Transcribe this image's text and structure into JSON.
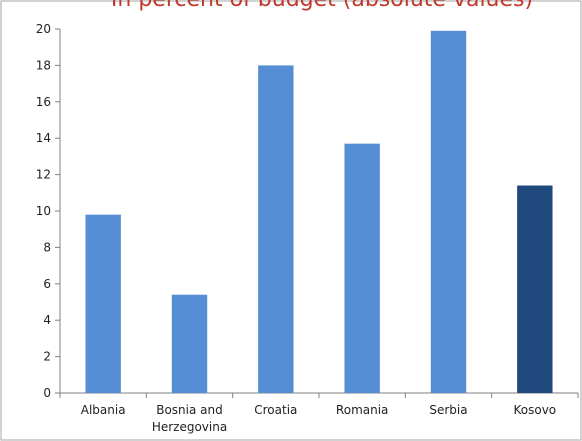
{
  "chart_data": {
    "type": "bar",
    "title": "In percent of budget (absolute values)",
    "categories": [
      "Albania",
      "Bosnia and Herzegovina",
      "Croatia",
      "Romania",
      "Serbia",
      "Kosovo"
    ],
    "category_lines": [
      [
        "Albania"
      ],
      [
        "Bosnia and",
        "Herzegovina"
      ],
      [
        "Croatia"
      ],
      [
        "Romania"
      ],
      [
        "Serbia"
      ],
      [
        "Kosovo"
      ]
    ],
    "values": [
      9.8,
      5.4,
      18.0,
      13.7,
      19.9,
      11.4
    ],
    "ylim": [
      0,
      20
    ],
    "yticks": [
      0,
      2,
      4,
      6,
      8,
      10,
      12,
      14,
      16,
      18,
      20
    ],
    "xlabel": "",
    "ylabel": "",
    "grid": false,
    "colors": {
      "default_bar": "#558ED5",
      "highlight_bar": "#1F497D",
      "highlight_category": "Kosovo",
      "title": "#C0392B",
      "axis": "#808080",
      "frame": "#A6A6A6"
    }
  }
}
